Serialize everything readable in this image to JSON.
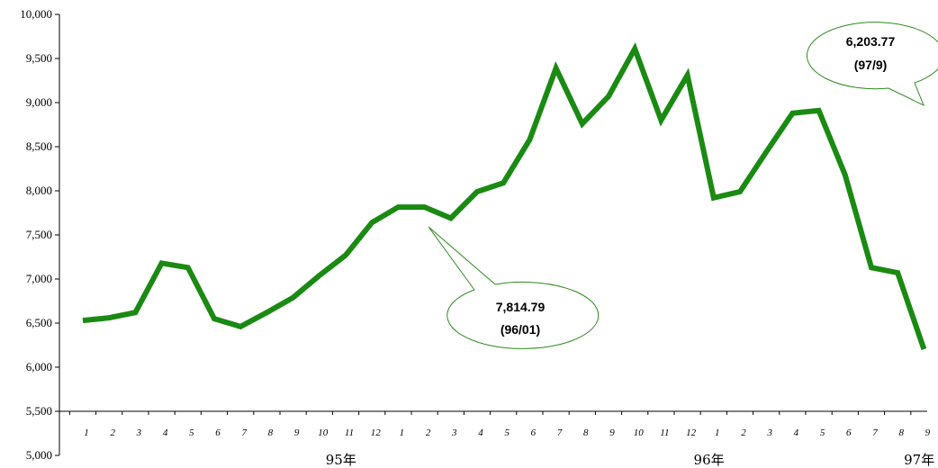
{
  "chart_data": {
    "type": "line",
    "title": "",
    "xlabel": "",
    "ylabel": "",
    "ylim": [
      5000,
      10000
    ],
    "y_ticks": [
      "5,000",
      "5,500",
      "6,000",
      "6,500",
      "7,000",
      "7,500",
      "8,000",
      "8,500",
      "9,000",
      "9,500",
      "10,000"
    ],
    "y_tick_values": [
      5000,
      5500,
      6000,
      6500,
      7000,
      7500,
      8000,
      8500,
      9000,
      9500,
      10000
    ],
    "month_labels": [
      "1",
      "2",
      "3",
      "4",
      "5",
      "6",
      "7",
      "8",
      "9",
      "10",
      "11",
      "12",
      "1",
      "2",
      "3",
      "4",
      "5",
      "6",
      "7",
      "8",
      "9",
      "10",
      "11",
      "12",
      "1",
      "2",
      "3",
      "4",
      "5",
      "6",
      "7",
      "8",
      "9"
    ],
    "year_labels": [
      {
        "label": "95年",
        "at_index": 9
      },
      {
        "label": "96年",
        "at_index": 23
      },
      {
        "label": "97年",
        "at_index": 31
      }
    ],
    "series": [
      {
        "color": "#1a8a12",
        "values": [
          6530,
          6560,
          6620,
          7180,
          7130,
          6550,
          6460,
          6620,
          6790,
          7040,
          7270,
          7640,
          7815,
          7815,
          7690,
          7990,
          8090,
          8580,
          9390,
          8760,
          9070,
          9610,
          8800,
          9310,
          7920,
          7990,
          8440,
          8880,
          8910,
          8180,
          7130,
          7070,
          6204
        ]
      }
    ],
    "grid": false,
    "annotations": [
      {
        "value_text": "7,814.79",
        "date_text": "(96/01)",
        "point_index": 13
      },
      {
        "value_text": "6,203.77",
        "date_text": "(97/9)",
        "point_index": 32
      }
    ]
  }
}
